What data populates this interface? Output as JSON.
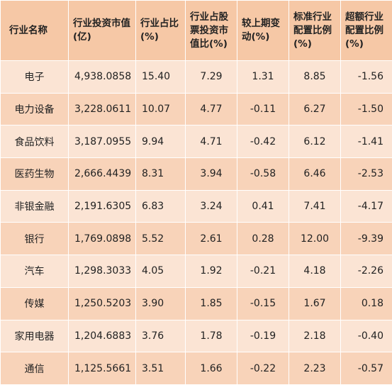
{
  "table": {
    "headers": [
      "行业名称",
      "行业投资市值(亿)",
      "行业占比(%)",
      "行业占股票投资市值比(%)",
      "较上期变动(%)",
      "标准行业配置比例(%)",
      "超额行业配置比例(%)"
    ],
    "rows": [
      [
        "电子",
        "4,938.0858",
        "15.40",
        "7.29",
        "1.31",
        "8.85",
        "-1.56"
      ],
      [
        "电力设备",
        "3,228.0611",
        "10.07",
        "4.77",
        "-0.11",
        "6.27",
        "-1.50"
      ],
      [
        "食品饮料",
        "3,187.0955",
        "9.94",
        "4.71",
        "-0.42",
        "6.12",
        "-1.41"
      ],
      [
        "医药生物",
        "2,666.4439",
        "8.31",
        "3.94",
        "-0.58",
        "6.46",
        "-2.53"
      ],
      [
        "非银金融",
        "2,191.6305",
        "6.83",
        "3.24",
        "0.41",
        "7.41",
        "-4.17"
      ],
      [
        "银行",
        "1,769.0898",
        "5.52",
        "2.61",
        "0.28",
        "12.00",
        "-9.39"
      ],
      [
        "汽车",
        "1,298.3033",
        "4.05",
        "1.92",
        "-0.21",
        "4.18",
        "-2.26"
      ],
      [
        "传媒",
        "1,250.5203",
        "3.90",
        "1.85",
        "-0.15",
        "1.67",
        "0.18"
      ],
      [
        "家用电器",
        "1,204.6883",
        "3.76",
        "1.78",
        "-0.19",
        "2.18",
        "-0.40"
      ],
      [
        "通信",
        "1,125.5661",
        "3.51",
        "1.66",
        "-0.22",
        "2.23",
        "-0.57"
      ]
    ]
  },
  "colors": {
    "header_bg": "#f6c8a6",
    "row_light": "#fbe4d4",
    "row_dark": "#f8d3b9"
  }
}
